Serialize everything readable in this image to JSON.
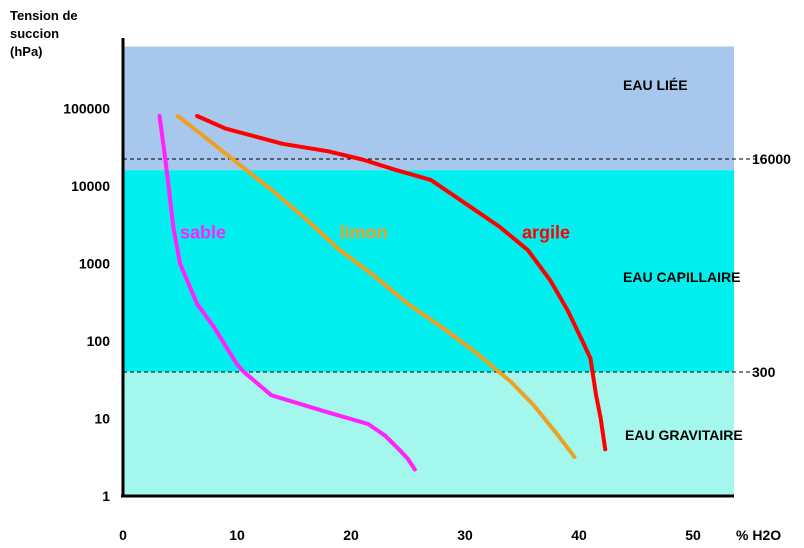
{
  "chart_data": {
    "type": "line",
    "ylabel_lines": [
      "Tension  de",
      "succion",
      "(hPa)"
    ],
    "xlabel": "%  H2O",
    "y_scale": "log",
    "ylim": [
      1,
      631000
    ],
    "xlim": [
      0,
      53.6
    ],
    "y_ticks": [
      {
        "value": 1,
        "label": "1"
      },
      {
        "value": 10,
        "label": "10"
      },
      {
        "value": 100,
        "label": "100"
      },
      {
        "value": 1000,
        "label": "1000"
      },
      {
        "value": 10000,
        "label": "10000"
      },
      {
        "value": 100000,
        "label": "100000"
      }
    ],
    "x_ticks": [
      {
        "value": 0,
        "label": "0"
      },
      {
        "value": 10,
        "label": "10"
      },
      {
        "value": 20,
        "label": "20"
      },
      {
        "value": 30,
        "label": "30"
      },
      {
        "value": 40,
        "label": "40"
      },
      {
        "value": 50,
        "label": "50"
      }
    ],
    "zones": [
      {
        "label": "EAU  LIÉE",
        "from": 16000,
        "to": 631000,
        "color": "#a7c8ec"
      },
      {
        "label": "EAU  CAPILLAIRE",
        "from": 40,
        "to": 16000,
        "color": "#00f0f0"
      },
      {
        "label": "EAU  GRAVITAIRE",
        "from": 1,
        "to": 40,
        "color": "#a3f7ec"
      }
    ],
    "boundaries": [
      {
        "value": 16000,
        "label": "16000"
      },
      {
        "value": 300,
        "label": "300"
      }
    ],
    "series": [
      {
        "name": "sable",
        "color": "#ff22ff",
        "points": [
          [
            3.2,
            80000
          ],
          [
            3.6,
            30000
          ],
          [
            4,
            10000
          ],
          [
            4.4,
            3000
          ],
          [
            5,
            1000
          ],
          [
            6.5,
            300
          ],
          [
            8,
            150
          ],
          [
            10,
            50
          ],
          [
            10.6,
            40
          ],
          [
            13,
            20
          ],
          [
            18,
            12
          ],
          [
            21.5,
            8.5
          ],
          [
            23,
            6
          ],
          [
            24.2,
            4
          ],
          [
            25,
            3
          ],
          [
            25.6,
            2.2
          ]
        ],
        "label_at": [
          5,
          2500
        ]
      },
      {
        "name": "limon",
        "color": "#f0a020",
        "points": [
          [
            4.8,
            80000
          ],
          [
            7,
            45000
          ],
          [
            10,
            20000
          ],
          [
            13,
            9000
          ],
          [
            16,
            3800
          ],
          [
            19,
            1500
          ],
          [
            22,
            700
          ],
          [
            25,
            300
          ],
          [
            28,
            150
          ],
          [
            31,
            70
          ],
          [
            34,
            30
          ],
          [
            36,
            15
          ],
          [
            38,
            6.5
          ],
          [
            39.6,
            3.2
          ]
        ],
        "label_at": [
          19,
          2500
        ]
      },
      {
        "name": "argile",
        "color": "#ff0000",
        "points": [
          [
            6.5,
            80000
          ],
          [
            9,
            55000
          ],
          [
            14,
            35000
          ],
          [
            18,
            28000
          ],
          [
            21,
            22000
          ],
          [
            24,
            16000
          ],
          [
            27,
            12000
          ],
          [
            30,
            6000
          ],
          [
            33,
            3000
          ],
          [
            35.5,
            1500
          ],
          [
            37.5,
            600
          ],
          [
            39,
            250
          ],
          [
            40.3,
            100
          ],
          [
            41,
            60
          ],
          [
            41.5,
            20
          ],
          [
            41.9,
            10
          ],
          [
            42.3,
            4
          ]
        ],
        "label_at": [
          35,
          2500
        ]
      }
    ]
  }
}
